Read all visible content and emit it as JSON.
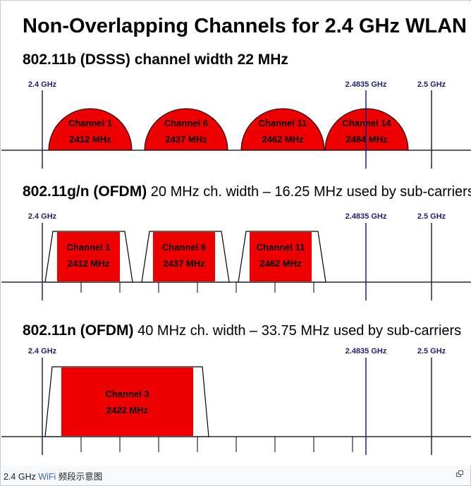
{
  "figure": {
    "title": "Non-Overlapping Channels for 2.4 GHz WLAN",
    "sections": [
      {
        "heading_bold": "802.11b (DSSS) channel width 22 MHz",
        "heading_rest": "",
        "shape": "dome",
        "markers": [
          "2.4 GHz",
          "2.4835 GHz",
          "2.5 GHz"
        ],
        "channels": [
          {
            "name": "Channel 1",
            "freq": "2412 MHz"
          },
          {
            "name": "Channel 6",
            "freq": "2437 MHz"
          },
          {
            "name": "Channel 11",
            "freq": "2462 MHz"
          },
          {
            "name": "Channel 14",
            "freq": "2484 MHz"
          }
        ]
      },
      {
        "heading_bold": "802.11g/n (OFDM)",
        "heading_rest": " 20 MHz ch. width – 16.25 MHz used by sub-carriers",
        "shape": "trapezoid",
        "markers": [
          "2.4 GHz",
          "2.4835 GHz",
          "2.5 GHz"
        ],
        "channels": [
          {
            "name": "Channel 1",
            "freq": "2412 MHz"
          },
          {
            "name": "Channel 6",
            "freq": "2437 MHz"
          },
          {
            "name": "Channel 11",
            "freq": "2462 MHz"
          }
        ]
      },
      {
        "heading_bold": "802.11n (OFDM)",
        "heading_rest": " 40 MHz ch. width – 33.75 MHz used by sub-carriers",
        "shape": "trapezoid",
        "markers": [
          "2.4 GHz",
          "2.4835 GHz",
          "2.5 GHz"
        ],
        "channels": [
          {
            "name": "Channel 3",
            "freq": "2422 MHz"
          }
        ]
      }
    ],
    "colors": {
      "fill": "#ee0000",
      "marker": "#1f1f7a",
      "axis": "#000000"
    }
  },
  "caption": {
    "prefix": "2.4 GHz ",
    "link": "WiFi",
    "suffix": " 频段示意图"
  },
  "icons": {
    "enlarge": "enlarge-icon"
  }
}
